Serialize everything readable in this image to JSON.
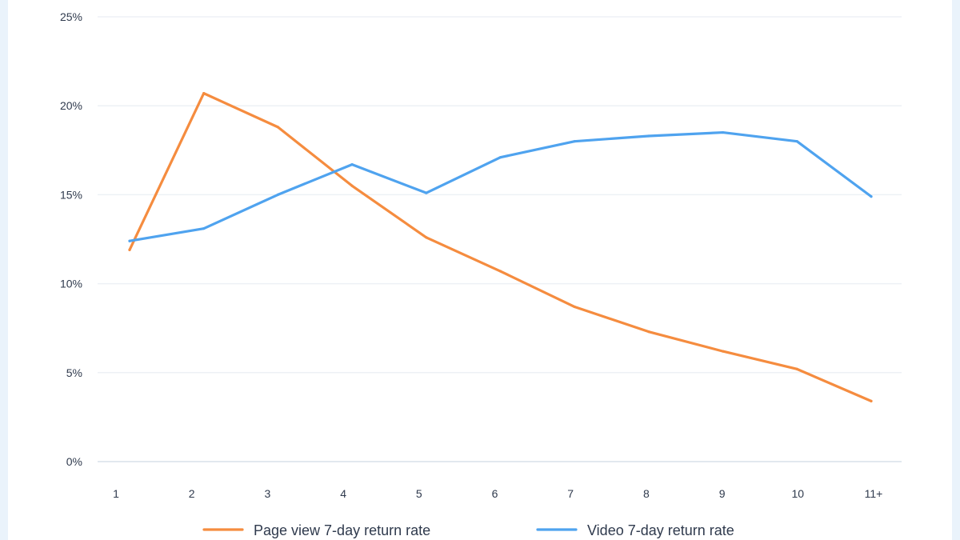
{
  "chart_data": {
    "type": "line",
    "title": "",
    "xlabel": "",
    "ylabel": "",
    "categories": [
      "1",
      "2",
      "3",
      "4",
      "5",
      "6",
      "7",
      "8",
      "9",
      "10",
      "11+"
    ],
    "y_ticks": [
      "0%",
      "5%",
      "10%",
      "15%",
      "20%",
      "25%"
    ],
    "ylim": [
      0,
      25
    ],
    "grid": true,
    "legend_position": "bottom",
    "series": [
      {
        "name": "Page view 7-day return rate",
        "color": "#f58c3f",
        "values": [
          11.9,
          20.7,
          18.8,
          15.5,
          12.6,
          10.7,
          8.7,
          7.3,
          6.2,
          5.2,
          3.4
        ]
      },
      {
        "name": "Video 7-day return rate",
        "color": "#4fa3ef",
        "values": [
          12.4,
          13.1,
          15.0,
          16.7,
          15.1,
          17.1,
          18.0,
          18.3,
          18.5,
          18.0,
          14.9
        ]
      }
    ]
  }
}
